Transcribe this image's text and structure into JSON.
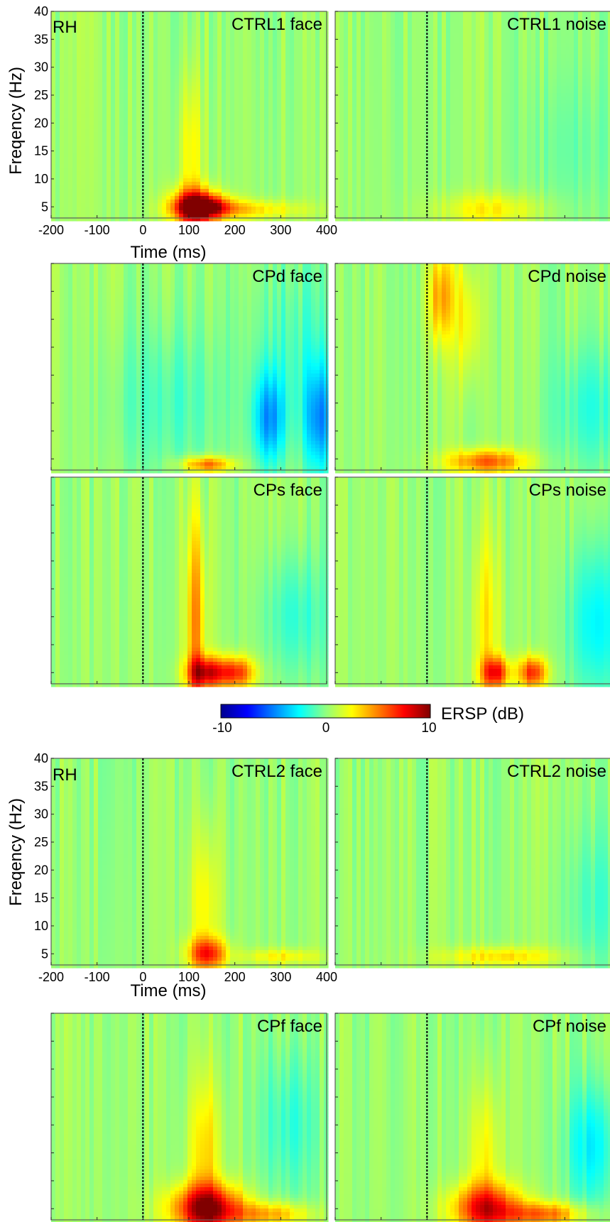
{
  "figure": {
    "hemisphere_label": "RH",
    "ylabel": "Freqency (Hz)",
    "xlabel": "Time (ms)",
    "colorbar": {
      "label": "ERSP (dB)",
      "ticks": [
        "-10",
        "0",
        "10"
      ],
      "range": [
        -10,
        10
      ],
      "colormap": "jet"
    }
  },
  "chart_data": [
    {
      "type": "heatmap",
      "title": "CTRL1 face",
      "group": "CTRL1",
      "condition": "face",
      "x_ticks": [
        -200,
        -100,
        0,
        100,
        200,
        300,
        400
      ],
      "y_ticks": [
        5,
        10,
        15,
        20,
        25,
        30,
        35,
        40
      ],
      "xlim": [
        -200,
        400
      ],
      "ylim": [
        3,
        40
      ],
      "onset_ms": 0,
      "features": [
        {
          "t": 110,
          "f": 5,
          "val": 6.5,
          "sigma_t": 35,
          "sigma_f": 2.5
        },
        {
          "t": 135,
          "f": 5,
          "val": 7,
          "sigma_t": 40,
          "sigma_f": 1.5
        },
        {
          "t": 225,
          "f": 4.5,
          "val": 3,
          "sigma_t": 90,
          "sigma_f": 1.2
        },
        {
          "t": 105,
          "f": 15,
          "val": 2.5,
          "sigma_t": 18,
          "sigma_f": 10
        }
      ]
    },
    {
      "type": "heatmap",
      "title": "CTRL1 noise",
      "group": "CTRL1",
      "condition": "noise",
      "xlim": [
        -200,
        400
      ],
      "ylim": [
        3,
        40
      ],
      "onset_ms": 0,
      "features": [
        {
          "t": 140,
          "f": 4.5,
          "val": 2.5,
          "sigma_t": 80,
          "sigma_f": 2
        },
        {
          "t": 320,
          "f": 15,
          "val": -0.8,
          "sigma_t": 80,
          "sigma_f": 10
        }
      ]
    },
    {
      "type": "heatmap",
      "title": "CPd face",
      "group": "CPd",
      "condition": "face",
      "xlim": [
        -200,
        400
      ],
      "ylim": [
        3,
        40
      ],
      "onset_ms": 0,
      "features": [
        {
          "t": 140,
          "f": 4,
          "val": 5.5,
          "sigma_t": 40,
          "sigma_f": 1
        },
        {
          "t": 275,
          "f": 12,
          "val": -4.5,
          "sigma_t": 25,
          "sigma_f": 6
        },
        {
          "t": 385,
          "f": 12,
          "val": -4.5,
          "sigma_t": 25,
          "sigma_f": 7
        },
        {
          "t": 330,
          "f": 25,
          "val": -1.5,
          "sigma_t": 70,
          "sigma_f": 12
        },
        {
          "t": 55,
          "f": 15,
          "val": -1.5,
          "sigma_t": 90,
          "sigma_f": 10
        }
      ]
    },
    {
      "type": "heatmap",
      "title": "CPd noise",
      "group": "CPd",
      "condition": "noise",
      "xlim": [
        -200,
        400
      ],
      "ylim": [
        3,
        40
      ],
      "onset_ms": 0,
      "features": [
        {
          "t": 130,
          "f": 4.5,
          "val": 5.5,
          "sigma_t": 60,
          "sigma_f": 1.5
        },
        {
          "t": 30,
          "f": 34,
          "val": 4,
          "sigma_t": 20,
          "sigma_f": 6
        },
        {
          "t": 90,
          "f": 30,
          "val": 2.5,
          "sigma_t": 20,
          "sigma_f": 8
        },
        {
          "t": 360,
          "f": 14,
          "val": -2,
          "sigma_t": 60,
          "sigma_f": 8
        }
      ]
    },
    {
      "type": "heatmap",
      "title": "CPs face",
      "group": "CPs",
      "condition": "face",
      "xlim": [
        -200,
        400
      ],
      "ylim": [
        3,
        40
      ],
      "onset_ms": 0,
      "features": [
        {
          "t": 140,
          "f": 5,
          "val": 7.5,
          "sigma_t": 30,
          "sigma_f": 2
        },
        {
          "t": 205,
          "f": 5,
          "val": 6,
          "sigma_t": 28,
          "sigma_f": 2
        },
        {
          "t": 115,
          "f": 14,
          "val": 4.5,
          "sigma_t": 15,
          "sigma_f": 14
        },
        {
          "t": 330,
          "f": 15,
          "val": -2,
          "sigma_t": 50,
          "sigma_f": 8
        }
      ]
    },
    {
      "type": "heatmap",
      "title": "CPs noise",
      "group": "CPs",
      "condition": "noise",
      "xlim": [
        -200,
        400
      ],
      "ylim": [
        3,
        40
      ],
      "onset_ms": 0,
      "features": [
        {
          "t": 150,
          "f": 5,
          "val": 6.5,
          "sigma_t": 22,
          "sigma_f": 2
        },
        {
          "t": 230,
          "f": 5,
          "val": 6.5,
          "sigma_t": 22,
          "sigma_f": 2
        },
        {
          "t": 130,
          "f": 14,
          "val": 2.5,
          "sigma_t": 20,
          "sigma_f": 12
        },
        {
          "t": 370,
          "f": 14,
          "val": -3,
          "sigma_t": 45,
          "sigma_f": 10
        }
      ]
    },
    {
      "type": "heatmap",
      "title": "CTRL2 face",
      "group": "CTRL2",
      "condition": "face",
      "xlim": [
        -200,
        400
      ],
      "ylim": [
        3,
        40
      ],
      "onset_ms": 0,
      "features": [
        {
          "t": 140,
          "f": 5,
          "val": 6,
          "sigma_t": 30,
          "sigma_f": 2
        },
        {
          "t": 135,
          "f": 14,
          "val": 2.5,
          "sigma_t": 22,
          "sigma_f": 10
        },
        {
          "t": 300,
          "f": 4.5,
          "val": 2.5,
          "sigma_t": 60,
          "sigma_f": 1
        }
      ]
    },
    {
      "type": "heatmap",
      "title": "CTRL2 noise",
      "group": "CTRL2",
      "condition": "noise",
      "xlim": [
        -200,
        400
      ],
      "ylim": [
        3,
        40
      ],
      "onset_ms": 0,
      "features": [
        {
          "t": 160,
          "f": 4.5,
          "val": 3,
          "sigma_t": 90,
          "sigma_f": 1.2
        },
        {
          "t": 370,
          "f": 14,
          "val": -1.5,
          "sigma_t": 50,
          "sigma_f": 10
        }
      ]
    },
    {
      "type": "heatmap",
      "title": "CPf face",
      "group": "CPf",
      "condition": "face",
      "xlim": [
        -200,
        400
      ],
      "ylim": [
        3,
        40
      ],
      "onset_ms": 0,
      "features": [
        {
          "t": 140,
          "f": 5,
          "val": 9,
          "sigma_t": 55,
          "sigma_f": 3
        },
        {
          "t": 135,
          "f": 15,
          "val": 3,
          "sigma_t": 25,
          "sigma_f": 10
        },
        {
          "t": 280,
          "f": 4,
          "val": 4,
          "sigma_t": 60,
          "sigma_f": 1.5
        },
        {
          "t": 320,
          "f": 20,
          "val": -2,
          "sigma_t": 45,
          "sigma_f": 10
        }
      ]
    },
    {
      "type": "heatmap",
      "title": "CPf noise",
      "group": "CPf",
      "condition": "noise",
      "xlim": [
        -200,
        400
      ],
      "ylim": [
        3,
        40
      ],
      "onset_ms": 0,
      "features": [
        {
          "t": 130,
          "f": 5,
          "val": 7,
          "sigma_t": 55,
          "sigma_f": 3
        },
        {
          "t": 260,
          "f": 4,
          "val": 5,
          "sigma_t": 60,
          "sigma_f": 1.5
        },
        {
          "t": 125,
          "f": 14,
          "val": 2.5,
          "sigma_t": 25,
          "sigma_f": 10
        },
        {
          "t": 360,
          "f": 16,
          "val": -3,
          "sigma_t": 40,
          "sigma_f": 8
        }
      ]
    }
  ]
}
